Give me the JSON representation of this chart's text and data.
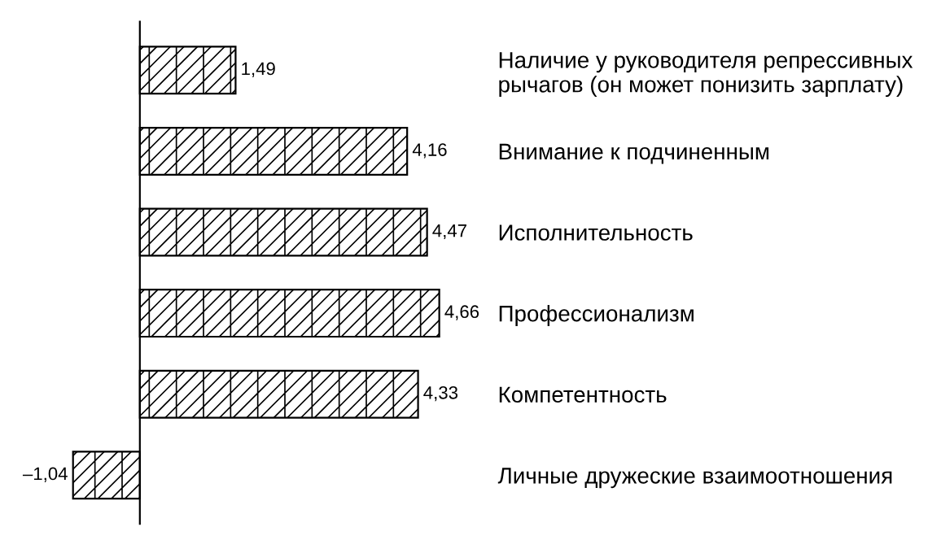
{
  "chart_data": {
    "type": "bar",
    "orientation": "horizontal",
    "categories": [
      "Наличие у руководителя репрессивных\nрычагов (он может понизить зарплату)",
      "Внимание к подчиненным",
      "Исполнительность",
      "Профессионализм",
      "Компетентность",
      "Личные дружеские взаимоотношения"
    ],
    "values": [
      1.49,
      4.16,
      4.47,
      4.66,
      4.33,
      -1.04
    ],
    "value_labels": [
      "1,49",
      "4,16",
      "4,47",
      "4,66",
      "4,33",
      "–1,04"
    ],
    "color": "#000000",
    "grid": false,
    "legend": false
  }
}
